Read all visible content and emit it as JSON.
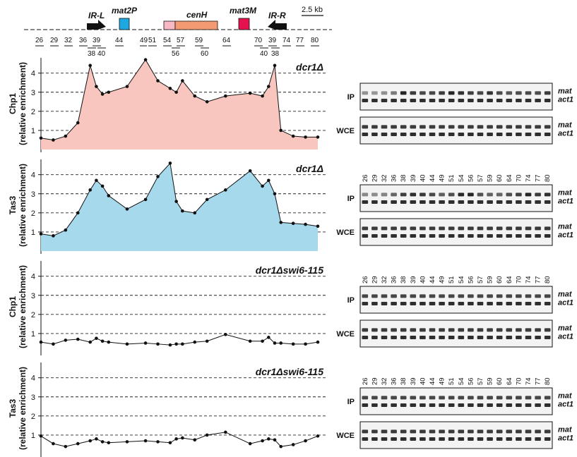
{
  "map": {
    "scale_label": "2.5 kb",
    "features": [
      {
        "id": "ir_l",
        "label": "IR-L",
        "color": "#111111"
      },
      {
        "id": "mat2p",
        "label": "mat2P",
        "color": "#1ea8e0"
      },
      {
        "id": "cenh",
        "label": "cenH",
        "color_light": "#f6b9c3",
        "color": "#f39a73"
      },
      {
        "id": "mat3m",
        "label": "mat3M",
        "color": "#e5124f"
      },
      {
        "id": "ir_r",
        "label": "IR-R",
        "color": "#111111"
      }
    ],
    "primers_top": [
      "26",
      "29",
      "32",
      "36",
      "39",
      "44",
      "49",
      "51",
      "54",
      "57",
      "59",
      "64",
      "70",
      "39",
      "74",
      "77",
      "80"
    ],
    "primers_bottom": [
      "38",
      "40",
      "56",
      "60",
      "40",
      "38"
    ]
  },
  "lanes": [
    "26",
    "29",
    "32",
    "36",
    "38",
    "39",
    "40",
    "44",
    "49",
    "51",
    "54",
    "56",
    "57",
    "59",
    "60",
    "64",
    "70",
    "74",
    "77",
    "80"
  ],
  "gel_labels": {
    "ip": "IP",
    "wce": "WCE",
    "band_top": "mat",
    "band_bottom": "act1"
  },
  "panels": [
    {
      "id": "p1",
      "protein": "Chp1",
      "ylabel": "(relative enrichment)",
      "strain": "dcr1Δ",
      "fill": "#f8c6bf",
      "show_lanes": false,
      "chart_data": {
        "type": "area",
        "ylim": [
          0,
          4.8
        ],
        "yticks": [
          1,
          2,
          3,
          4
        ],
        "x": [
          0,
          2,
          4,
          6,
          8,
          9,
          10,
          11,
          14,
          17,
          19,
          21,
          22,
          23,
          25,
          27,
          30,
          34,
          36,
          37,
          38,
          39,
          41,
          43,
          45
        ],
        "values": [
          0.6,
          0.5,
          0.7,
          1.4,
          4.4,
          3.3,
          2.9,
          3.0,
          3.3,
          4.7,
          3.6,
          3.2,
          3.0,
          3.6,
          2.8,
          2.5,
          2.8,
          2.95,
          2.8,
          3.3,
          4.4,
          1.0,
          0.7,
          0.65,
          0.65
        ]
      }
    },
    {
      "id": "p2",
      "protein": "Tas3",
      "ylabel": "(relative enrichment)",
      "strain": "dcr1Δ",
      "fill": "#a7d9ec",
      "show_lanes": true,
      "chart_data": {
        "type": "area",
        "ylim": [
          0,
          4.8
        ],
        "yticks": [
          1,
          2,
          3,
          4
        ],
        "x": [
          0,
          2,
          4,
          6,
          8,
          9,
          10,
          11,
          14,
          17,
          19,
          21,
          22,
          23,
          25,
          27,
          30,
          34,
          36,
          37,
          38,
          39,
          41,
          43,
          45
        ],
        "values": [
          0.9,
          0.8,
          1.1,
          2.0,
          3.2,
          3.7,
          3.4,
          2.9,
          2.2,
          2.7,
          3.9,
          4.6,
          2.6,
          2.1,
          2.0,
          2.7,
          3.2,
          4.2,
          3.4,
          3.7,
          3.0,
          1.5,
          1.45,
          1.4,
          1.3
        ]
      }
    },
    {
      "id": "p3",
      "protein": "Chp1",
      "ylabel": "(relative enrichment)",
      "strain": "dcr1Δswi6-115",
      "fill": "none",
      "show_lanes": true,
      "chart_data": {
        "type": "line",
        "ylim": [
          0,
          4.8
        ],
        "yticks": [
          1,
          2,
          3,
          4
        ],
        "x": [
          0,
          2,
          4,
          6,
          8,
          9,
          10,
          11,
          14,
          17,
          19,
          21,
          22,
          23,
          25,
          27,
          30,
          34,
          36,
          37,
          38,
          39,
          41,
          43,
          45
        ],
        "values": [
          0.55,
          0.45,
          0.65,
          0.7,
          0.55,
          0.75,
          0.6,
          0.55,
          0.45,
          0.5,
          0.45,
          0.4,
          0.45,
          0.45,
          0.55,
          0.6,
          0.95,
          0.6,
          0.6,
          0.8,
          0.5,
          0.5,
          0.45,
          0.45,
          0.55
        ]
      }
    },
    {
      "id": "p4",
      "protein": "Tas3",
      "ylabel": "(relative enrichment)",
      "strain": "dcr1Δswi6-115",
      "fill": "none",
      "show_lanes": true,
      "chart_data": {
        "type": "line",
        "ylim": [
          0,
          4.8
        ],
        "yticks": [
          1,
          2,
          3,
          4
        ],
        "x": [
          0,
          2,
          4,
          6,
          8,
          9,
          10,
          11,
          14,
          17,
          19,
          21,
          22,
          23,
          25,
          27,
          30,
          34,
          36,
          37,
          38,
          39,
          41,
          43,
          45
        ],
        "values": [
          0.95,
          0.55,
          0.4,
          0.55,
          0.7,
          0.8,
          0.65,
          0.6,
          0.65,
          0.7,
          0.65,
          0.6,
          0.8,
          0.85,
          0.75,
          1.0,
          1.15,
          0.55,
          0.7,
          0.8,
          0.75,
          0.4,
          0.5,
          0.7,
          0.95
        ]
      }
    }
  ]
}
